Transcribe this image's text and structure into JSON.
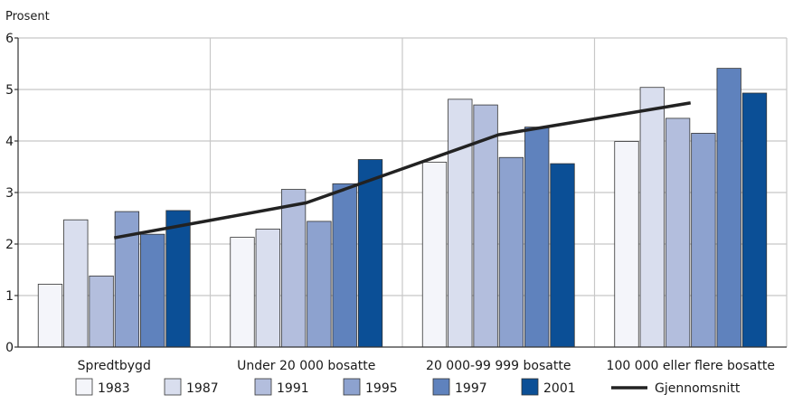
{
  "chart_data": {
    "type": "bar",
    "ylabel": "Prosent",
    "ylim": [
      0,
      6
    ],
    "yticks": [
      0,
      1,
      2,
      3,
      4,
      5,
      6
    ],
    "grid": true,
    "legend_position": "bottom",
    "categories": [
      "Spredtbygd",
      "Under 20 000 bosatte",
      "20 000-99 999 bosatte",
      "100 000 eller flere bosatte"
    ],
    "series": [
      {
        "name": "1983",
        "color": "#f4f5fa",
        "values": [
          1.22,
          2.13,
          3.59,
          3.99
        ]
      },
      {
        "name": "1987",
        "color": "#d9deee",
        "values": [
          2.47,
          2.29,
          4.81,
          5.04
        ]
      },
      {
        "name": "1991",
        "color": "#b3bedd",
        "values": [
          1.38,
          3.06,
          4.7,
          4.44
        ]
      },
      {
        "name": "1995",
        "color": "#8da2cf",
        "values": [
          2.63,
          2.44,
          3.68,
          4.15
        ]
      },
      {
        "name": "1997",
        "color": "#5f82bd",
        "values": [
          2.19,
          3.17,
          4.27,
          5.41
        ]
      },
      {
        "name": "2001",
        "color": "#0b4f96",
        "values": [
          2.65,
          3.64,
          3.56,
          4.93
        ]
      }
    ],
    "line_series": {
      "name": "Gjennomsnitt",
      "color": "#222222",
      "values": [
        2.12,
        2.8,
        4.12,
        4.74
      ]
    }
  }
}
